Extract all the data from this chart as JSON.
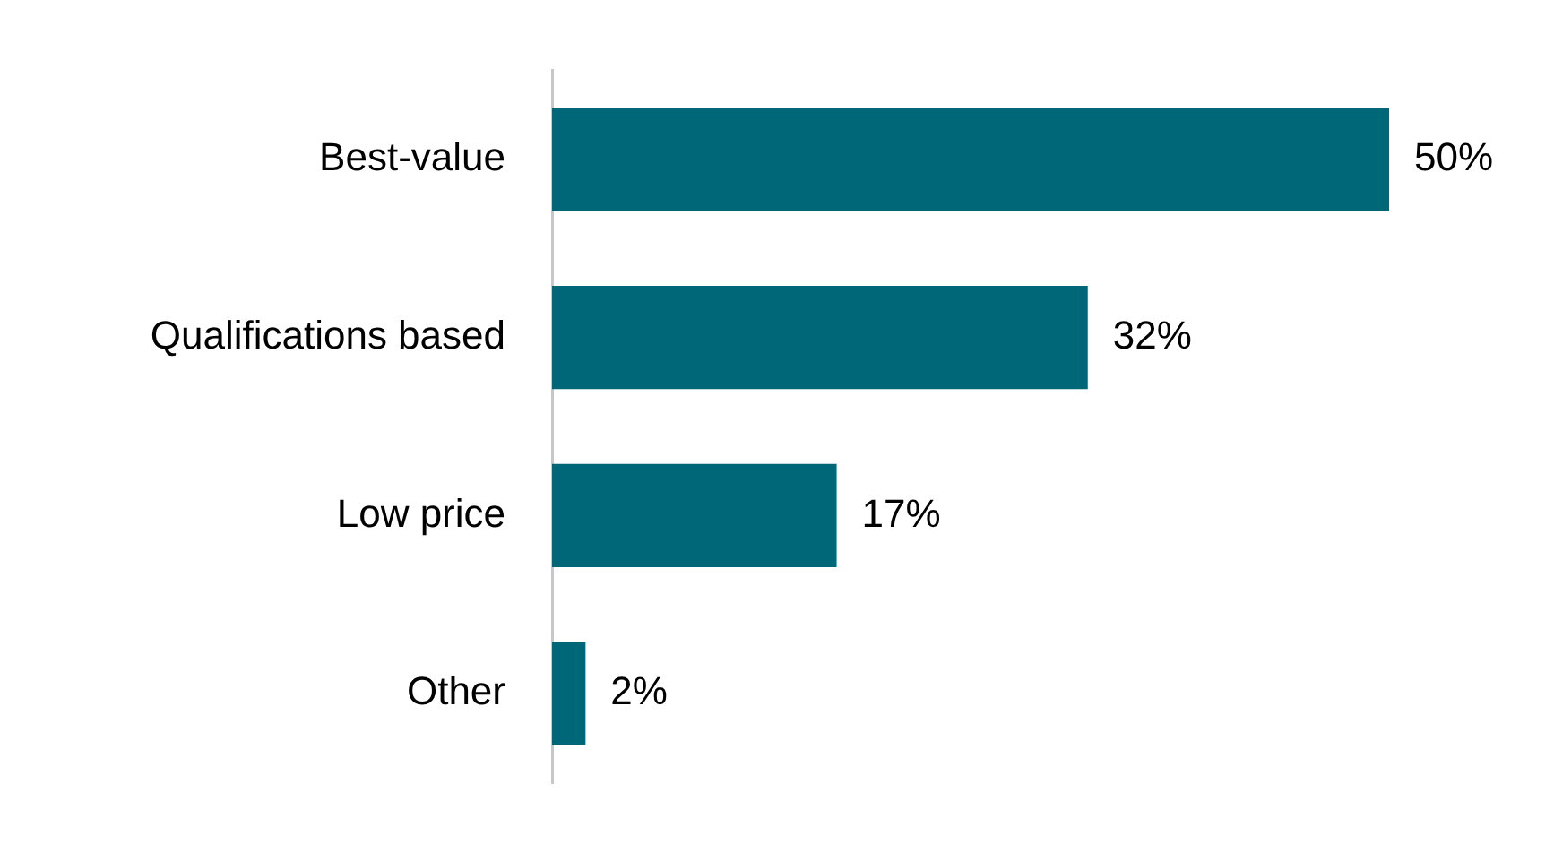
{
  "chart_data": {
    "type": "bar",
    "orientation": "horizontal",
    "categories": [
      "Best-value",
      "Qualifications based",
      "Low price",
      "Other"
    ],
    "values": [
      50,
      32,
      17,
      2
    ],
    "value_labels": [
      "50%",
      "32%",
      "17%",
      "2%"
    ],
    "color": "#006778",
    "tick_labels": "y"
  }
}
